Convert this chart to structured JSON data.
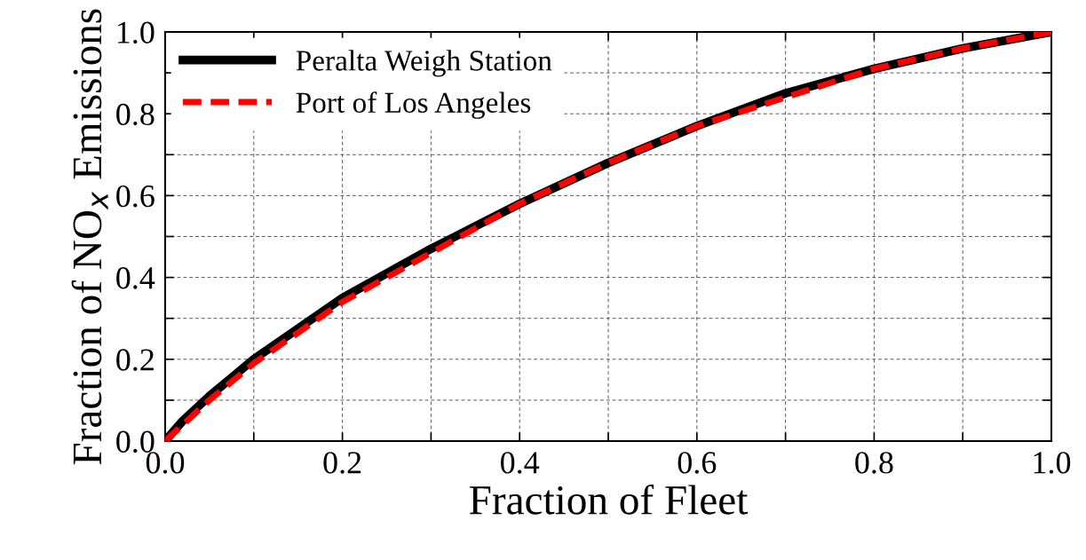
{
  "chart_data": {
    "type": "line",
    "xlabel": "Fraction of Fleet",
    "ylabel": "Fraction of NO$_{x}$ Emissions",
    "xlim": [
      0,
      1
    ],
    "ylim": [
      0,
      1
    ],
    "xticks": [
      {
        "value": 0,
        "label": "0.0"
      },
      {
        "value": 0.1,
        "label": null
      },
      {
        "value": 0.2,
        "label": "0.2"
      },
      {
        "value": 0.3,
        "label": null
      },
      {
        "value": 0.4,
        "label": "0.4"
      },
      {
        "value": 0.5,
        "label": null
      },
      {
        "value": 0.6,
        "label": "0.6"
      },
      {
        "value": 0.7,
        "label": null
      },
      {
        "value": 0.8,
        "label": "0.8"
      },
      {
        "value": 0.9,
        "label": null
      },
      {
        "value": 1,
        "label": "1.0"
      }
    ],
    "yticks": [
      {
        "value": 0,
        "label": "0.0"
      },
      {
        "value": 0.1,
        "label": null
      },
      {
        "value": 0.2,
        "label": "0.2"
      },
      {
        "value": 0.3,
        "label": null
      },
      {
        "value": 0.4,
        "label": "0.4"
      },
      {
        "value": 0.5,
        "label": null
      },
      {
        "value": 0.6,
        "label": "0.6"
      },
      {
        "value": 0.7,
        "label": null
      },
      {
        "value": 0.8,
        "label": "0.8"
      },
      {
        "value": 0.9,
        "label": null
      },
      {
        "value": 1,
        "label": "1.0"
      }
    ],
    "grid": true,
    "legend": "top left",
    "series": [
      {
        "name": "Peralta Weigh Station",
        "color": "#000000",
        "line_style": "solid",
        "x": [
          0,
          0.02,
          0.05,
          0.1,
          0.2,
          0.3,
          0.4,
          0.5,
          0.6,
          0.7,
          0.8,
          0.9,
          1.0
        ],
        "values": [
          0,
          0.05,
          0.11,
          0.2,
          0.35,
          0.47,
          0.58,
          0.68,
          0.77,
          0.85,
          0.91,
          0.96,
          1.0
        ]
      },
      {
        "name": "Port of Los Angeles",
        "color": "#ff0000",
        "line_style": "dashed",
        "x": [
          0,
          0.02,
          0.05,
          0.1,
          0.2,
          0.3,
          0.4,
          0.5,
          0.6,
          0.7,
          0.8,
          0.9,
          1.0
        ],
        "values": [
          0,
          0.04,
          0.1,
          0.19,
          0.34,
          0.46,
          0.58,
          0.68,
          0.77,
          0.84,
          0.91,
          0.96,
          1.0
        ]
      }
    ]
  }
}
